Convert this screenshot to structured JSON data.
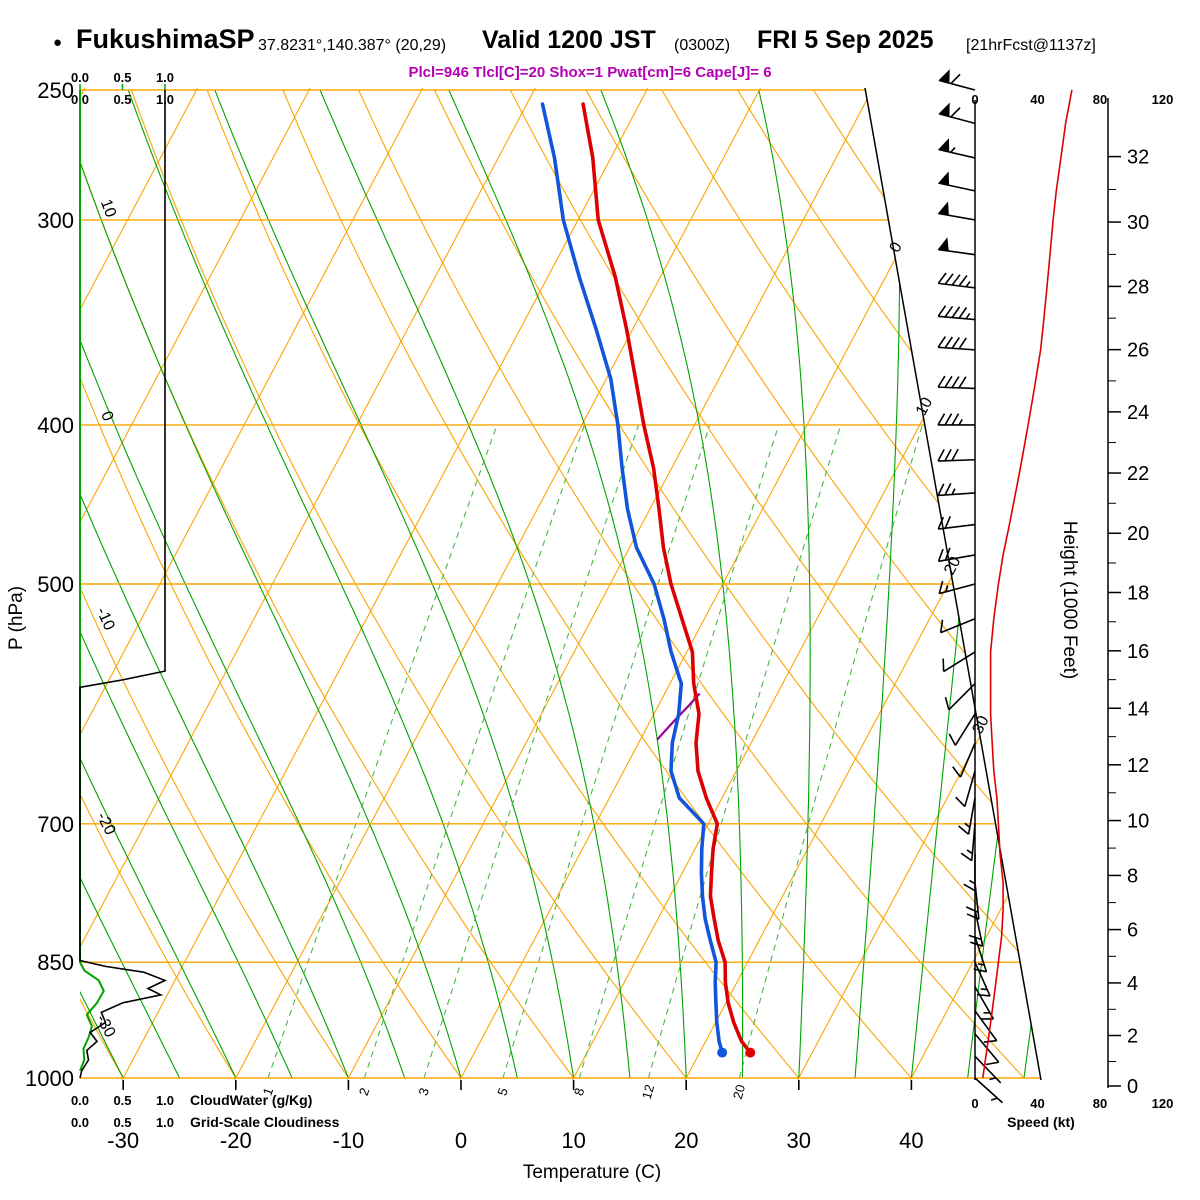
{
  "header": {
    "bullet": "●",
    "station": "FukushimaSP",
    "coords": "37.8231°,140.387° (20,29)",
    "valid_time": "Valid 1200 JST",
    "valid_zulu": "(0300Z)",
    "valid_date": "FRI 5 Sep 2025",
    "forecast_info": "[21hrFcst@1137z]",
    "params_line": "Plcl=946 Tlcl[C]=20 Shox=1 Pwat[cm]=6 Cape[J]= 6"
  },
  "axes": {
    "pressure_label": "P (hPa)",
    "pressure_ticks": [
      250,
      300,
      400,
      500,
      700,
      850,
      1000
    ],
    "temperature_label": "Temperature (C)",
    "temperature_ticks": [
      -30,
      -20,
      -10,
      0,
      10,
      20,
      30,
      40
    ],
    "height_label": "Height (1000 Feet)",
    "height_ticks_kft": [
      0,
      2,
      4,
      6,
      8,
      10,
      12,
      14,
      16,
      18,
      20,
      22,
      24,
      26,
      28,
      30,
      32
    ],
    "speed_label": "Speed (kt)",
    "speed_ticks_kt": [
      0,
      40,
      80,
      120
    ]
  },
  "legend": {
    "cloudwater_scale": [
      "0.0",
      "0.5",
      "1.0"
    ],
    "cloudwater_label": "CloudWater (g/Kg)",
    "cloudiness_scale": [
      "0.0",
      "0.5",
      "1.0"
    ],
    "cloudiness_label": "Grid-Scale Cloudiness"
  },
  "chart_data": {
    "type": "line",
    "variant": "skew-t-log-p-sounding",
    "station": "FukushimaSP",
    "indices": {
      "Plcl_hPa": 946,
      "Tlcl_C": 20,
      "Shox": 1,
      "Pwat_cm": 6,
      "Cape_J": 6
    },
    "pressure_range_hPa": [
      250,
      1000
    ],
    "isotherms_C": {
      "min": -80,
      "max": 40,
      "step": 10,
      "right_edge_labels": [
        0,
        10,
        20,
        30
      ]
    },
    "dry_adiabats_C": {
      "min": -40,
      "max": 120,
      "step": 10,
      "left_edge_labels": [
        10,
        0,
        -10,
        -20,
        -30
      ]
    },
    "moist_adiabats_C": {
      "min": -30,
      "max": 50,
      "step": 5
    },
    "mixing_ratio_g_per_kg": [
      1,
      2,
      3,
      5,
      8,
      12,
      20
    ],
    "surface_point": {
      "pressure_hPa": 965,
      "temperature_C": 24.5,
      "dewpoint_C": 22.0
    },
    "temperature_profile_p_t": [
      [
        965,
        24.5
      ],
      [
        950,
        23.2
      ],
      [
        925,
        21.6
      ],
      [
        900,
        20.2
      ],
      [
        875,
        19.0
      ],
      [
        850,
        18.0
      ],
      [
        825,
        16.4
      ],
      [
        800,
        15.0
      ],
      [
        775,
        13.6
      ],
      [
        750,
        12.6
      ],
      [
        725,
        11.6
      ],
      [
        700,
        10.8
      ],
      [
        675,
        8.6
      ],
      [
        650,
        6.6
      ],
      [
        625,
        5.1
      ],
      [
        600,
        4.0
      ],
      [
        575,
        2.1
      ],
      [
        550,
        0.5
      ],
      [
        525,
        -2.0
      ],
      [
        500,
        -4.6
      ],
      [
        475,
        -7.0
      ],
      [
        450,
        -9.2
      ],
      [
        425,
        -11.6
      ],
      [
        400,
        -14.5
      ],
      [
        375,
        -17.4
      ],
      [
        350,
        -20.5
      ],
      [
        325,
        -24.0
      ],
      [
        300,
        -28.2
      ],
      [
        275,
        -31.6
      ],
      [
        255,
        -35.0
      ]
    ],
    "dewpoint_profile_p_t": [
      [
        965,
        22.0
      ],
      [
        950,
        21.2
      ],
      [
        925,
        20.1
      ],
      [
        900,
        19.1
      ],
      [
        875,
        18.1
      ],
      [
        850,
        17.2
      ],
      [
        825,
        15.7
      ],
      [
        800,
        14.2
      ],
      [
        775,
        12.9
      ],
      [
        750,
        11.7
      ],
      [
        725,
        10.6
      ],
      [
        700,
        9.6
      ],
      [
        675,
        6.2
      ],
      [
        650,
        4.2
      ],
      [
        625,
        3.0
      ],
      [
        600,
        2.2
      ],
      [
        575,
        1.0
      ],
      [
        550,
        -1.4
      ],
      [
        525,
        -3.6
      ],
      [
        500,
        -6.1
      ],
      [
        475,
        -9.4
      ],
      [
        450,
        -12.0
      ],
      [
        425,
        -14.4
      ],
      [
        400,
        -16.8
      ],
      [
        375,
        -19.6
      ],
      [
        350,
        -23.2
      ],
      [
        325,
        -27.2
      ],
      [
        300,
        -31.3
      ],
      [
        275,
        -35.0
      ],
      [
        255,
        -38.6
      ]
    ],
    "parcel_segment_p_t": [
      [
        583,
        3.1
      ],
      [
        593,
        2.7
      ],
      [
        604,
        2.2
      ],
      [
        614,
        1.8
      ],
      [
        622,
        1.5
      ]
    ],
    "wind_profile_p_dir_spd": [
      [
        250,
        285,
        62
      ],
      [
        262,
        285,
        58
      ],
      [
        275,
        283,
        55
      ],
      [
        288,
        282,
        52
      ],
      [
        300,
        280,
        50
      ],
      [
        315,
        278,
        48
      ],
      [
        330,
        277,
        46
      ],
      [
        345,
        275,
        44
      ],
      [
        360,
        274,
        42
      ],
      [
        380,
        272,
        38
      ],
      [
        400,
        270,
        34
      ],
      [
        420,
        268,
        30
      ],
      [
        440,
        266,
        26
      ],
      [
        460,
        263,
        22
      ],
      [
        480,
        260,
        18
      ],
      [
        500,
        255,
        15
      ],
      [
        525,
        248,
        12
      ],
      [
        550,
        238,
        10
      ],
      [
        575,
        225,
        10
      ],
      [
        600,
        212,
        10
      ],
      [
        625,
        203,
        11
      ],
      [
        650,
        196,
        12
      ],
      [
        675,
        190,
        14
      ],
      [
        700,
        185,
        15
      ],
      [
        730,
        180,
        16
      ],
      [
        760,
        174,
        18
      ],
      [
        790,
        168,
        18
      ],
      [
        820,
        162,
        17
      ],
      [
        850,
        156,
        15
      ],
      [
        880,
        150,
        13
      ],
      [
        910,
        144,
        11
      ],
      [
        940,
        140,
        9
      ],
      [
        970,
        136,
        7
      ],
      [
        1000,
        132,
        5
      ]
    ],
    "cloudiness_profile_p_frac": [
      [
        250,
        1
      ],
      [
        300,
        1
      ],
      [
        350,
        1
      ],
      [
        400,
        1
      ],
      [
        450,
        1
      ],
      [
        500,
        1
      ],
      [
        550,
        1
      ],
      [
        565,
        1
      ],
      [
        572,
        0.5
      ],
      [
        578,
        0
      ],
      [
        700,
        0
      ],
      [
        848,
        0
      ],
      [
        855,
        0.3
      ],
      [
        862,
        0.75
      ],
      [
        872,
        1.0
      ],
      [
        882,
        0.8
      ],
      [
        890,
        0.95
      ],
      [
        900,
        0.5
      ],
      [
        912,
        0.25
      ],
      [
        925,
        0.3
      ],
      [
        938,
        0.12
      ],
      [
        950,
        0.2
      ],
      [
        962,
        0.08
      ],
      [
        975,
        0.1
      ],
      [
        990,
        0.02
      ],
      [
        1000,
        0
      ]
    ],
    "cloudwater_profile_p_gkg": [
      [
        250,
        0
      ],
      [
        600,
        0
      ],
      [
        850,
        0
      ],
      [
        860,
        0.05
      ],
      [
        872,
        0.22
      ],
      [
        885,
        0.28
      ],
      [
        900,
        0.2
      ],
      [
        915,
        0.08
      ],
      [
        930,
        0.14
      ],
      [
        945,
        0.1
      ],
      [
        960,
        0.04
      ],
      [
        975,
        0.05
      ],
      [
        990,
        0
      ]
    ],
    "colors": {
      "grid_orange": "#f9a602",
      "moist_green": "#00a300",
      "mixing_green": "#4cb648",
      "mixing_label_green": "#3aa33a",
      "temperature_red": "#dd0000",
      "dewpoint_blue": "#1155dd",
      "parcel_magenta": "#990099",
      "speed_red": "#dd0000",
      "cloudiness_black": "#000000",
      "params_magenta": "#b300b3"
    }
  }
}
